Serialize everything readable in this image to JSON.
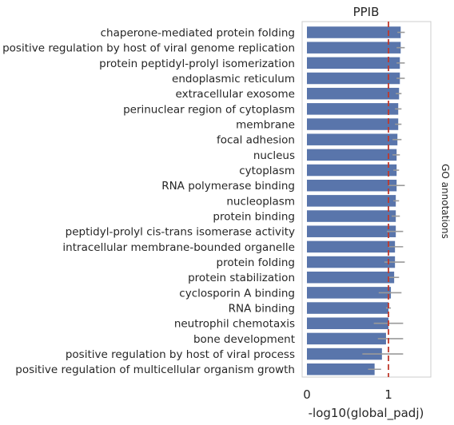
{
  "chart_data": {
    "type": "bar",
    "orientation": "horizontal",
    "title": "PPIB",
    "xlabel": "-log10(global_padj)",
    "ylabel": "",
    "right_label": "GO annotations",
    "xlim": [
      0,
      1.5
    ],
    "xticks": [
      0,
      1
    ],
    "xtick_labels": [
      "0",
      "1"
    ],
    "reference_line": 1.0,
    "grid": false,
    "legend": "none",
    "categories": [
      "chaperone-mediated protein folding",
      "positive regulation by host of viral genome replication",
      "protein peptidyl-prolyl isomerization",
      "endoplasmic reticulum",
      "extracellular exosome",
      "perinuclear region of cytoplasm",
      "membrane",
      "focal adhesion",
      "nucleus",
      "cytoplasm",
      "RNA polymerase binding",
      "nucleoplasm",
      "protein binding",
      "peptidyl-prolyl cis-trans isomerase activity",
      "intracellular membrane-bounded organelle",
      "protein folding",
      "protein stabilization",
      "cyclosporin A binding",
      "RNA binding",
      "neutrophil chemotaxis",
      "bone development",
      "positive regulation by host of viral process",
      "positive regulation of multicellular organism growth"
    ],
    "values": [
      1.15,
      1.15,
      1.14,
      1.14,
      1.13,
      1.12,
      1.12,
      1.11,
      1.1,
      1.1,
      1.1,
      1.09,
      1.09,
      1.09,
      1.08,
      1.08,
      1.07,
      1.03,
      1.0,
      1.0,
      0.97,
      0.92,
      0.83
    ],
    "error_low": [
      1.11,
      1.1,
      1.1,
      1.1,
      1.09,
      1.08,
      1.08,
      1.05,
      1.05,
      1.06,
      1.0,
      1.06,
      1.04,
      0.98,
      1.0,
      0.95,
      1.0,
      0.88,
      0.97,
      0.82,
      0.87,
      0.68,
      0.75
    ],
    "error_high": [
      1.2,
      1.2,
      1.2,
      1.2,
      1.16,
      1.16,
      1.16,
      1.16,
      1.14,
      1.13,
      1.2,
      1.13,
      1.14,
      1.18,
      1.18,
      1.2,
      1.13,
      1.16,
      1.03,
      1.18,
      1.18,
      1.18,
      0.91
    ],
    "colors": {
      "bar": "#5975ab",
      "error": "#9a9a9a",
      "reference_line": "#c0392b",
      "frame": "#cccccc",
      "text": "#262626"
    }
  }
}
